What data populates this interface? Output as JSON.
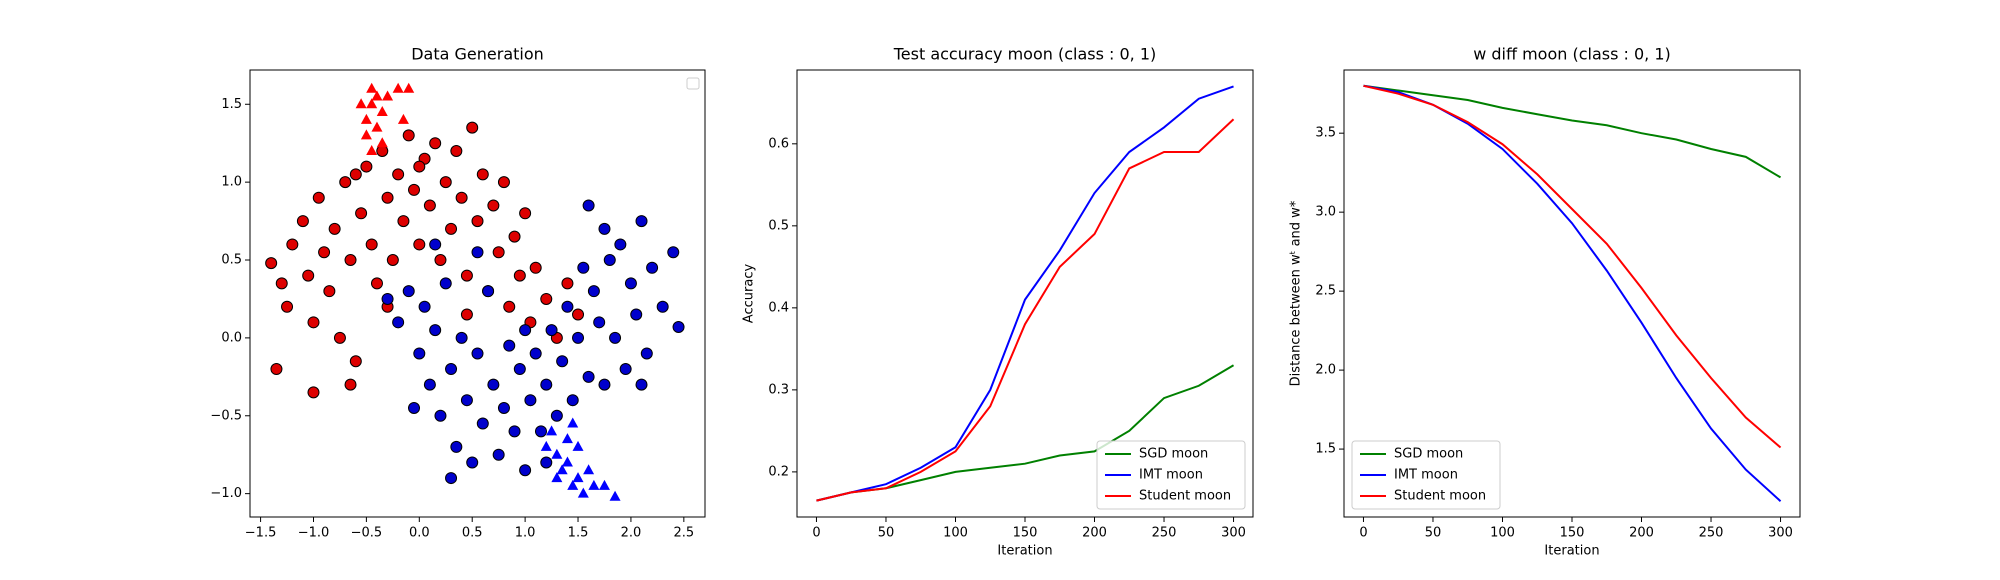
{
  "chart_data": [
    {
      "type": "scatter",
      "title": "Data Generation",
      "xlim": [
        -1.6,
        2.7
      ],
      "ylim": [
        -1.15,
        1.72
      ],
      "xticks": [
        {
          "value": -1.5,
          "label": "−1.5"
        },
        {
          "value": -1.0,
          "label": "−1.0"
        },
        {
          "value": -0.5,
          "label": "−0.5"
        },
        {
          "value": 0,
          "label": "0.0"
        },
        0.5,
        {
          "value": 1,
          "label": "1.0"
        },
        1.5,
        {
          "value": 2,
          "label": "2.0"
        },
        2.5
      ],
      "yticks": [
        {
          "value": -1.0,
          "label": "−1.0"
        },
        {
          "value": -0.5,
          "label": "−0.5"
        },
        {
          "value": 0,
          "label": "0.0"
        },
        0.5,
        {
          "value": 1,
          "label": "1.0"
        },
        1.5
      ],
      "series": [
        {
          "color": "#dd0000",
          "marker": "circle",
          "x": [
            -1.4,
            -1.3,
            -1.25,
            -1.2,
            -1.1,
            -1.05,
            -1.0,
            -0.95,
            -0.9,
            -0.85,
            -0.8,
            -0.75,
            -0.7,
            -0.65,
            -0.6,
            -0.55,
            -0.5,
            -0.45,
            -0.4,
            -0.35,
            -0.3,
            -0.25,
            -0.2,
            -0.15,
            -0.1,
            -0.05,
            0.0,
            0.05,
            0.1,
            0.15,
            0.2,
            0.25,
            0.3,
            0.35,
            0.4,
            0.45,
            0.5,
            0.55,
            0.6,
            0.65,
            0.7,
            0.75,
            0.8,
            0.85,
            0.9,
            0.95,
            1.0,
            1.05,
            1.1,
            1.2,
            1.3,
            1.4,
            1.5,
            -1.35,
            -1.0,
            -0.65,
            -0.3,
            0.45,
            0.0,
            -0.6
          ],
          "y": [
            0.48,
            0.35,
            0.2,
            0.6,
            0.75,
            0.4,
            0.1,
            0.9,
            0.55,
            0.3,
            0.7,
            0.0,
            1.0,
            0.5,
            -0.15,
            0.8,
            1.1,
            0.6,
            0.35,
            1.2,
            0.9,
            0.5,
            1.05,
            0.75,
            1.3,
            0.95,
            0.6,
            1.15,
            0.85,
            1.25,
            0.5,
            1.0,
            0.7,
            1.2,
            0.9,
            0.4,
            1.35,
            0.75,
            1.05,
            0.3,
            0.85,
            0.55,
            1.0,
            0.2,
            0.65,
            0.4,
            0.8,
            0.1,
            0.45,
            0.25,
            0.0,
            0.35,
            0.15,
            -0.2,
            -0.35,
            -0.3,
            0.2,
            0.15,
            1.1,
            1.05
          ]
        },
        {
          "color": "#0000cc",
          "marker": "circle",
          "x": [
            -0.3,
            -0.2,
            -0.1,
            0.0,
            0.05,
            0.1,
            0.15,
            0.2,
            0.25,
            0.3,
            0.35,
            0.4,
            0.45,
            0.5,
            0.55,
            0.6,
            0.65,
            0.7,
            0.75,
            0.8,
            0.85,
            0.9,
            0.95,
            1.0,
            1.05,
            1.1,
            1.15,
            1.2,
            1.25,
            1.3,
            1.35,
            1.4,
            1.45,
            1.5,
            1.55,
            1.6,
            1.65,
            1.7,
            1.75,
            1.8,
            1.85,
            1.9,
            1.95,
            2.0,
            2.05,
            2.1,
            2.15,
            2.2,
            2.3,
            2.4,
            2.45,
            1.6,
            0.3,
            0.55,
            1.2,
            -0.05,
            2.1,
            1.0,
            0.15,
            1.75
          ],
          "y": [
            0.25,
            0.1,
            0.3,
            -0.1,
            0.2,
            -0.3,
            0.05,
            -0.5,
            0.35,
            -0.2,
            -0.7,
            0.0,
            -0.4,
            -0.8,
            -0.1,
            -0.55,
            0.3,
            -0.3,
            -0.75,
            -0.45,
            -0.05,
            -0.6,
            -0.2,
            -0.85,
            -0.4,
            -0.1,
            -0.6,
            -0.3,
            0.05,
            -0.5,
            -0.15,
            0.2,
            -0.4,
            0.0,
            0.45,
            -0.25,
            0.3,
            0.1,
            -0.3,
            0.5,
            0.0,
            0.6,
            -0.2,
            0.35,
            0.15,
            0.75,
            -0.1,
            0.45,
            0.2,
            0.55,
            0.07,
            0.85,
            -0.9,
            0.55,
            -0.8,
            -0.45,
            -0.3,
            0.05,
            0.6,
            0.7
          ]
        },
        {
          "color": "#ff0000",
          "marker": "triangle",
          "x": [
            -0.5,
            -0.45,
            -0.4,
            -0.5,
            -0.35,
            -0.45,
            -0.55,
            -0.4,
            -0.3,
            -0.2,
            -0.1,
            -0.35,
            -0.45,
            -0.15
          ],
          "y": [
            1.4,
            1.5,
            1.55,
            1.3,
            1.45,
            1.6,
            1.5,
            1.35,
            1.55,
            1.6,
            1.6,
            1.25,
            1.2,
            1.4
          ]
        },
        {
          "color": "#0000ff",
          "marker": "triangle",
          "x": [
            1.2,
            1.3,
            1.35,
            1.4,
            1.45,
            1.5,
            1.55,
            1.6,
            1.4,
            1.3,
            1.25,
            1.65,
            1.75,
            1.85,
            1.5,
            1.45
          ],
          "y": [
            -0.7,
            -0.75,
            -0.85,
            -0.8,
            -0.95,
            -0.9,
            -1.0,
            -0.85,
            -0.65,
            -0.9,
            -0.6,
            -0.95,
            -0.95,
            -1.02,
            -0.7,
            -0.55
          ]
        }
      ]
    },
    {
      "type": "line",
      "title": "Test accuracy moon (class : 0, 1)",
      "xlabel": "Iteration",
      "ylabel": "Accuracy",
      "xlim": [
        -14,
        314
      ],
      "ylim": [
        0.145,
        0.69
      ],
      "xticks": [
        0,
        50,
        100,
        150,
        200,
        250,
        300
      ],
      "yticks": [
        0.2,
        0.3,
        0.4,
        0.5,
        0.6
      ],
      "legend": "lower right",
      "x": [
        0,
        25,
        50,
        75,
        100,
        125,
        150,
        175,
        200,
        225,
        250,
        275,
        300
      ],
      "series": [
        {
          "name": "SGD moon",
          "color": "#008000",
          "values": [
            0.165,
            0.175,
            0.18,
            0.19,
            0.2,
            0.205,
            0.21,
            0.22,
            0.225,
            0.25,
            0.29,
            0.305,
            0.33
          ]
        },
        {
          "name": "IMT moon",
          "color": "#0000ff",
          "values": [
            0.165,
            0.175,
            0.185,
            0.205,
            0.23,
            0.3,
            0.41,
            0.47,
            0.54,
            0.59,
            0.62,
            0.655,
            0.67
          ]
        },
        {
          "name": "Student moon",
          "color": "#ff0000",
          "values": [
            0.165,
            0.175,
            0.18,
            0.2,
            0.225,
            0.28,
            0.38,
            0.45,
            0.49,
            0.57,
            0.59,
            0.59,
            0.63
          ]
        }
      ]
    },
    {
      "type": "line",
      "title": "w diff moon (class : 0, 1)",
      "xlabel": "Iteration",
      "ylabel": "Distance between wᵗ and w*",
      "xlim": [
        -14,
        314
      ],
      "ylim": [
        1.07,
        3.9
      ],
      "xticks": [
        0,
        50,
        100,
        150,
        200,
        250,
        300
      ],
      "yticks": [
        1.5,
        {
          "value": 2,
          "label": "2.0"
        },
        2.5,
        {
          "value": 3,
          "label": "3.0"
        },
        3.5
      ],
      "legend": "lower left",
      "x": [
        0,
        25,
        50,
        75,
        100,
        125,
        150,
        175,
        200,
        225,
        250,
        275,
        300
      ],
      "series": [
        {
          "name": "SGD moon",
          "color": "#008000",
          "values": [
            3.8,
            3.77,
            3.74,
            3.71,
            3.66,
            3.62,
            3.58,
            3.55,
            3.5,
            3.46,
            3.4,
            3.35,
            3.22
          ]
        },
        {
          "name": "IMT moon",
          "color": "#0000ff",
          "values": [
            3.8,
            3.76,
            3.68,
            3.56,
            3.4,
            3.18,
            2.93,
            2.63,
            2.3,
            1.95,
            1.63,
            1.37,
            1.17
          ]
        },
        {
          "name": "Student moon",
          "color": "#ff0000",
          "values": [
            3.8,
            3.75,
            3.68,
            3.57,
            3.43,
            3.24,
            3.02,
            2.8,
            2.52,
            2.22,
            1.95,
            1.7,
            1.51
          ]
        }
      ]
    }
  ]
}
